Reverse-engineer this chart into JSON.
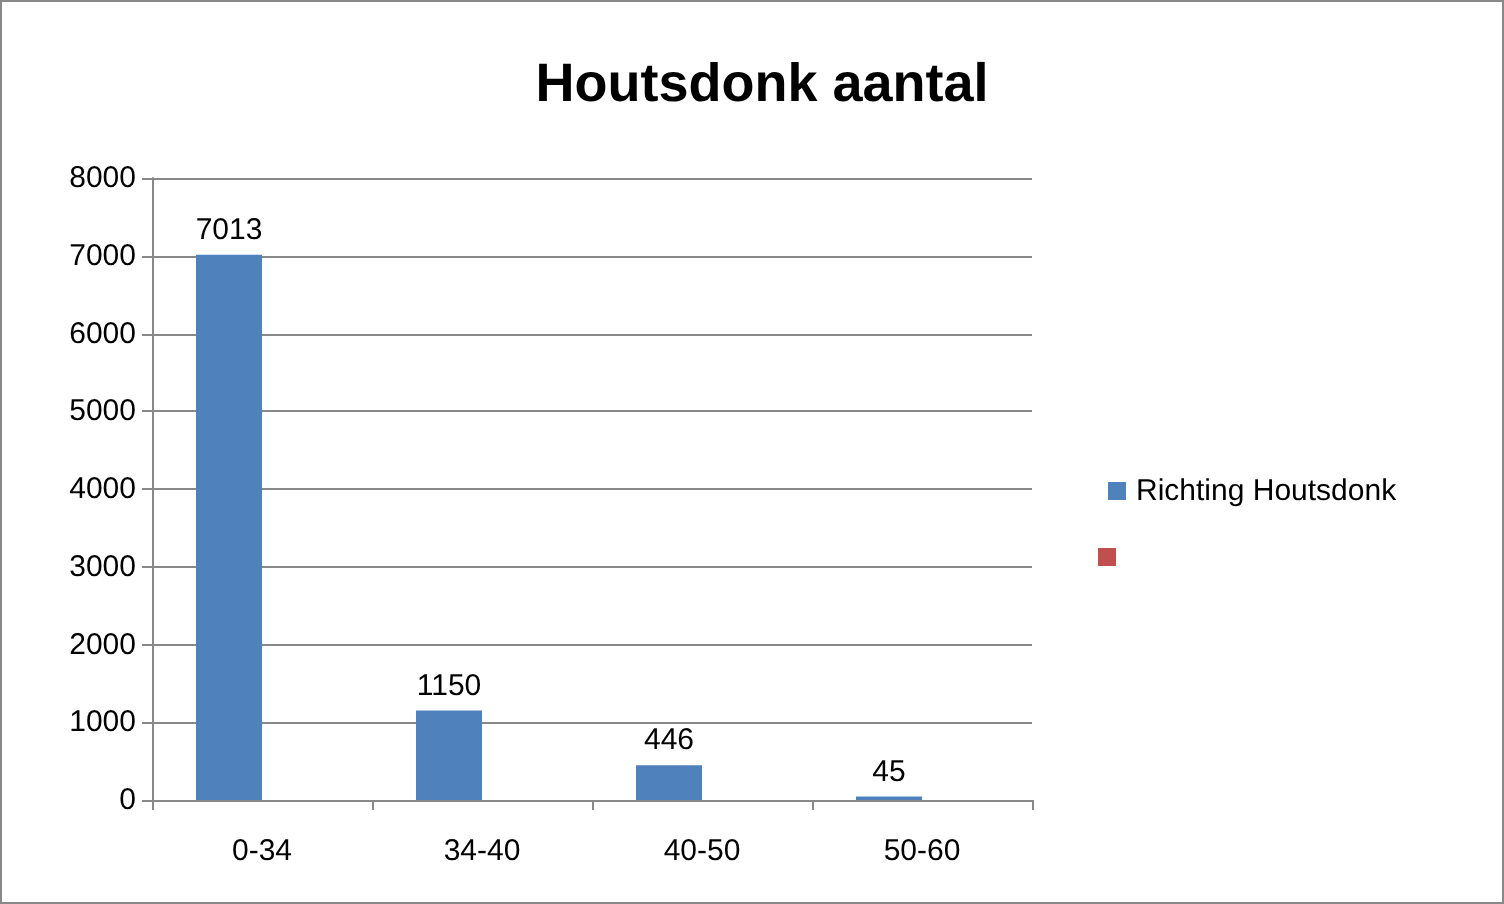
{
  "chart_data": {
    "type": "bar",
    "title": "Houtsdonk aantal",
    "categories": [
      "0-34",
      "34-40",
      "40-50",
      "50-60"
    ],
    "series": [
      {
        "name": "Richting Houtsdonk",
        "color": "#4f81bd",
        "values": [
          7013,
          1150,
          446,
          45
        ]
      },
      {
        "color": "#c0504d",
        "values": [
          null,
          null,
          null,
          null
        ]
      }
    ],
    "ylim": [
      0,
      8000
    ],
    "yticks": [
      0,
      1000,
      2000,
      3000,
      4000,
      5000,
      6000,
      7000,
      8000
    ],
    "grid": "y",
    "legend": "right",
    "data_labels": true
  }
}
